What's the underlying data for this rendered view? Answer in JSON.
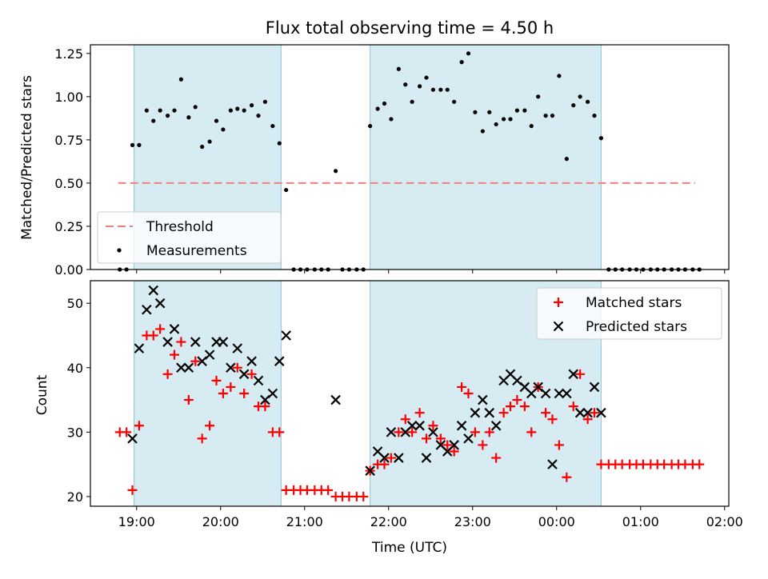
{
  "title": "Flux total observing time = 4.50 h",
  "chart_data": [
    {
      "type": "scatter",
      "ylabel": "Matched/Predicted stars",
      "xlim": [
        18.45,
        26.05
      ],
      "ylim": [
        0.0,
        1.3
      ],
      "yticks": [
        0.0,
        0.25,
        0.5,
        0.75,
        1.0,
        1.25
      ],
      "ytick_labels": [
        "0.00",
        "0.25",
        "0.50",
        "0.75",
        "1.00",
        "1.25"
      ],
      "shaded_intervals": [
        [
          18.97,
          20.72
        ],
        [
          21.78,
          24.53
        ]
      ],
      "threshold": {
        "label": "Threshold",
        "value": 0.5,
        "x_range": [
          18.78,
          25.65
        ],
        "color": "#f08080"
      },
      "series": [
        {
          "name": "Measurements",
          "marker": "dot",
          "color": "#000000",
          "x": [
            18.8,
            18.88,
            18.95,
            19.03,
            19.12,
            19.2,
            19.28,
            19.37,
            19.45,
            19.53,
            19.62,
            19.7,
            19.78,
            19.87,
            19.95,
            20.03,
            20.12,
            20.2,
            20.28,
            20.37,
            20.45,
            20.53,
            20.62,
            20.7,
            20.78,
            20.87,
            20.95,
            21.03,
            21.12,
            21.2,
            21.28,
            21.37,
            21.45,
            21.53,
            21.62,
            21.7,
            21.78,
            21.87,
            21.95,
            22.03,
            22.12,
            22.2,
            22.28,
            22.37,
            22.45,
            22.53,
            22.62,
            22.7,
            22.78,
            22.87,
            22.95,
            23.03,
            23.12,
            23.2,
            23.28,
            23.37,
            23.45,
            23.53,
            23.62,
            23.7,
            23.78,
            23.87,
            23.95,
            24.03,
            24.12,
            24.2,
            24.28,
            24.37,
            24.45,
            24.53,
            24.62,
            24.7,
            24.78,
            24.87,
            24.95,
            25.03,
            25.12,
            25.2,
            25.28,
            25.37,
            25.45,
            25.53,
            25.62,
            25.7
          ],
          "y": [
            0.0,
            0.0,
            0.72,
            0.72,
            0.92,
            0.86,
            0.92,
            0.89,
            0.92,
            1.1,
            0.88,
            0.94,
            0.71,
            0.74,
            0.86,
            0.81,
            0.92,
            0.93,
            0.92,
            0.95,
            0.89,
            0.97,
            0.83,
            0.73,
            0.46,
            0.0,
            0.0,
            0.0,
            0.0,
            0.0,
            0.0,
            0.57,
            0.0,
            0.0,
            0.0,
            0.0,
            0.83,
            0.93,
            0.96,
            0.87,
            1.16,
            1.07,
            0.97,
            1.06,
            1.11,
            1.04,
            1.04,
            1.04,
            0.97,
            1.2,
            1.25,
            0.91,
            0.8,
            0.91,
            0.84,
            0.87,
            0.87,
            0.92,
            0.92,
            0.83,
            1.0,
            0.89,
            0.89,
            1.12,
            0.64,
            0.95,
            1.0,
            0.97,
            0.89,
            0.76,
            0.0,
            0.0,
            0.0,
            0.0,
            0.0,
            0.0,
            0.0,
            0.0,
            0.0,
            0.0,
            0.0,
            0.0,
            0.0,
            0.0
          ]
        }
      ],
      "legend": {
        "position": "lower-left",
        "entries": [
          "Threshold",
          "Measurements"
        ]
      }
    },
    {
      "type": "scatter",
      "xlabel": "Time (UTC)",
      "ylabel": "Count",
      "xlim": [
        18.45,
        26.05
      ],
      "ylim": [
        18.5,
        53.5
      ],
      "xticks": [
        19,
        20,
        21,
        22,
        23,
        24,
        25,
        26
      ],
      "xtick_labels": [
        "19:00",
        "20:00",
        "21:00",
        "22:00",
        "23:00",
        "00:00",
        "01:00",
        "02:00"
      ],
      "yticks": [
        20,
        30,
        40,
        50
      ],
      "ytick_labels": [
        "20",
        "30",
        "40",
        "50"
      ],
      "shaded_intervals": [
        [
          18.97,
          20.72
        ],
        [
          21.78,
          24.53
        ]
      ],
      "series": [
        {
          "name": "Matched stars",
          "marker": "plus",
          "color": "#ff0000",
          "x": [
            18.8,
            18.88,
            18.95,
            19.03,
            19.12,
            19.2,
            19.28,
            19.37,
            19.45,
            19.53,
            19.62,
            19.7,
            19.78,
            19.87,
            19.95,
            20.03,
            20.12,
            20.2,
            20.28,
            20.37,
            20.45,
            20.53,
            20.62,
            20.7,
            20.78,
            20.87,
            20.95,
            21.03,
            21.12,
            21.2,
            21.28,
            21.37,
            21.45,
            21.53,
            21.62,
            21.7,
            21.78,
            21.87,
            21.95,
            22.03,
            22.12,
            22.2,
            22.28,
            22.37,
            22.45,
            22.53,
            22.62,
            22.7,
            22.78,
            22.87,
            22.95,
            23.03,
            23.12,
            23.2,
            23.28,
            23.37,
            23.45,
            23.53,
            23.62,
            23.7,
            23.78,
            23.87,
            23.95,
            24.03,
            24.12,
            24.2,
            24.28,
            24.37,
            24.45,
            24.53,
            24.62,
            24.7,
            24.78,
            24.87,
            24.95,
            25.03,
            25.12,
            25.2,
            25.28,
            25.37,
            25.45,
            25.53,
            25.62,
            25.7
          ],
          "y": [
            30,
            30,
            21,
            31,
            45,
            45,
            46,
            39,
            42,
            44,
            35,
            41,
            29,
            31,
            38,
            36,
            37,
            40,
            36,
            39,
            34,
            34,
            30,
            30,
            21,
            21,
            21,
            21,
            21,
            21,
            21,
            20,
            20,
            20,
            20,
            20,
            24,
            25,
            25,
            26,
            30,
            32,
            30,
            33,
            29,
            31,
            29,
            28,
            27,
            37,
            36,
            30,
            28,
            30,
            26,
            33,
            34,
            35,
            34,
            30,
            37,
            33,
            32,
            28,
            23,
            34,
            39,
            32,
            33,
            25,
            25,
            25,
            25,
            25,
            25,
            25,
            25,
            25,
            25,
            25,
            25,
            25,
            25,
            25
          ]
        },
        {
          "name": "Predicted stars",
          "marker": "x",
          "color": "#000000",
          "x": [
            18.95,
            19.03,
            19.12,
            19.2,
            19.28,
            19.37,
            19.45,
            19.53,
            19.62,
            19.7,
            19.78,
            19.87,
            19.95,
            20.03,
            20.12,
            20.2,
            20.28,
            20.37,
            20.45,
            20.53,
            20.62,
            20.7,
            20.78,
            21.37,
            21.78,
            21.87,
            21.95,
            22.03,
            22.12,
            22.2,
            22.28,
            22.37,
            22.45,
            22.53,
            22.62,
            22.7,
            22.78,
            22.87,
            22.95,
            23.03,
            23.12,
            23.2,
            23.28,
            23.37,
            23.45,
            23.53,
            23.62,
            23.7,
            23.78,
            23.87,
            23.95,
            24.03,
            24.12,
            24.2,
            24.28,
            24.37,
            24.45,
            24.53
          ],
          "y": [
            29,
            43,
            49,
            52,
            50,
            44,
            46,
            40,
            40,
            44,
            41,
            42,
            44,
            44,
            40,
            43,
            39,
            41,
            38,
            35,
            36,
            41,
            45,
            35,
            24,
            27,
            26,
            30,
            26,
            30,
            31,
            31,
            26,
            30,
            28,
            27,
            28,
            31,
            29,
            33,
            35,
            33,
            31,
            38,
            39,
            38,
            37,
            36,
            37,
            36,
            25,
            36,
            36,
            39,
            33,
            33,
            37,
            33
          ]
        }
      ],
      "legend": {
        "position": "upper-right",
        "entries": [
          "Matched stars",
          "Predicted stars"
        ]
      }
    }
  ]
}
